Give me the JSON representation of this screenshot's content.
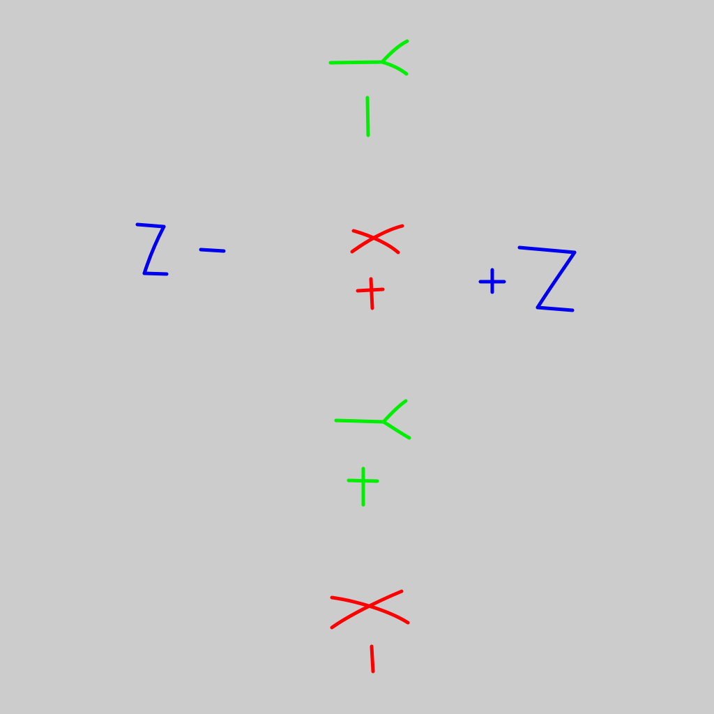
{
  "background_color": "#cccccc",
  "colors": {
    "x_axis": "#ff0000",
    "y_axis": "#00ee00",
    "z_axis": "#0000ee"
  },
  "labels": {
    "neg_y": "Y -",
    "pos_x": "X +",
    "neg_z": "Z -",
    "pos_z": "+ Z",
    "pos_y": "Y +",
    "neg_x": "X -"
  }
}
